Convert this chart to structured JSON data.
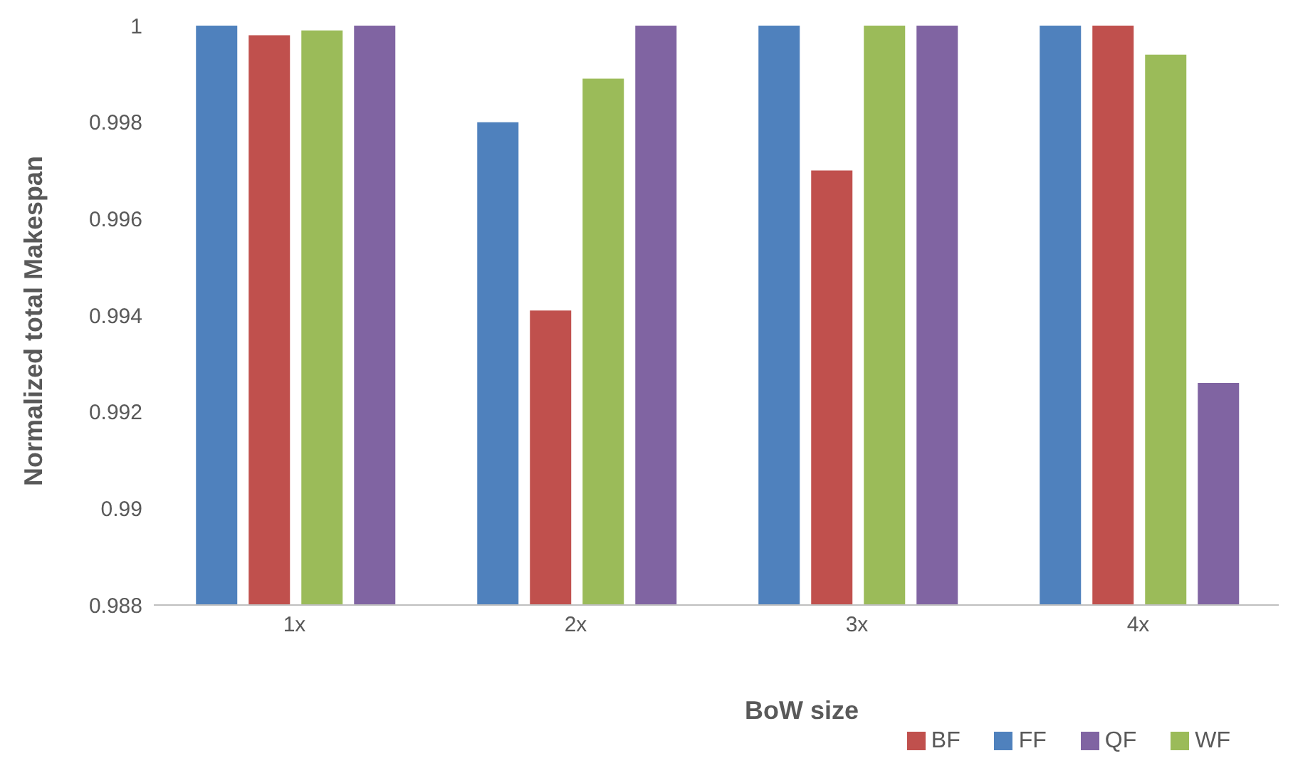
{
  "chart_data": {
    "type": "bar",
    "xlabel": "BoW size",
    "ylabel": "Normalized total Makespan",
    "categories": [
      "1x",
      "2x",
      "3x",
      "4x"
    ],
    "series": [
      {
        "name": "FF",
        "color": "#4f81bd",
        "values": [
          1,
          0.998,
          1,
          1
        ]
      },
      {
        "name": "BF",
        "color": "#c0504d",
        "values": [
          0.9998,
          0.9941,
          0.997,
          1
        ]
      },
      {
        "name": "WF",
        "color": "#9bbb59",
        "values": [
          0.9999,
          0.9989,
          1,
          0.9994
        ]
      },
      {
        "name": "QF",
        "color": "#8064a2",
        "values": [
          1,
          1,
          1,
          0.9926
        ]
      }
    ],
    "ylim": [
      0.988,
      1
    ],
    "yticks": [
      0.988,
      0.99,
      0.992,
      0.994,
      0.996,
      0.998,
      1
    ],
    "grid": false,
    "legend": "bottom right"
  }
}
